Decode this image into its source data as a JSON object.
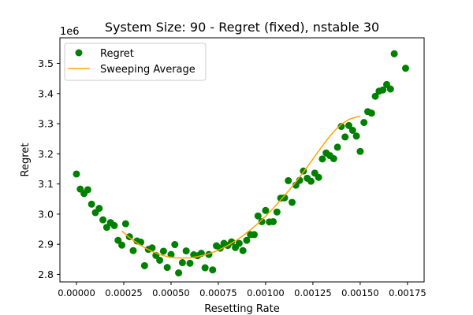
{
  "chart_data": {
    "type": "scatter",
    "title": "System Size: 90 - Regret (fixed), nstable 30",
    "xlabel": "Resetting Rate",
    "ylabel": "Regret",
    "y_offset_label": "1e6",
    "xlim": [
      -8.75e-05,
      0.001838
    ],
    "ylim": [
      2.775,
      3.585
    ],
    "x_ticks": [
      0,
      0.00025,
      0.0005,
      0.00075,
      0.001,
      0.00125,
      0.0015,
      0.00175
    ],
    "x_tick_labels": [
      "0.00000",
      "0.00025",
      "0.00050",
      "0.00075",
      "0.00100",
      "0.00125",
      "0.00150",
      "0.00175"
    ],
    "y_ticks": [
      2.8,
      2.9,
      3.0,
      3.1,
      3.2,
      3.3,
      3.4,
      3.5
    ],
    "y_tick_labels": [
      "2.8",
      "2.9",
      "3.0",
      "3.1",
      "3.2",
      "3.3",
      "3.4",
      "3.5"
    ],
    "grid": false,
    "legend_position": "top-left",
    "colors": {
      "scatter": "#008000",
      "line": "#ffa500"
    },
    "series": [
      {
        "name": "Regret",
        "kind": "scatter",
        "points": [
          [
            0.0,
            3.133
          ],
          [
            2e-05,
            3.083
          ],
          [
            4e-05,
            3.068
          ],
          [
            6e-05,
            3.081
          ],
          [
            8e-05,
            3.033
          ],
          [
            0.0001,
            3.005
          ],
          [
            0.00012,
            3.019
          ],
          [
            0.00014,
            2.981
          ],
          [
            0.00016,
            2.956
          ],
          [
            0.00018,
            2.972
          ],
          [
            0.0002,
            2.962
          ],
          [
            0.00022,
            2.913
          ],
          [
            0.00024,
            2.897
          ],
          [
            0.00026,
            2.968
          ],
          [
            0.00028,
            2.925
          ],
          [
            0.0003,
            2.879
          ],
          [
            0.00032,
            2.911
          ],
          [
            0.00034,
            2.907
          ],
          [
            0.00036,
            2.829
          ],
          [
            0.00038,
            2.883
          ],
          [
            0.0004,
            2.888
          ],
          [
            0.00042,
            2.863
          ],
          [
            0.00044,
            2.847
          ],
          [
            0.00046,
            2.877
          ],
          [
            0.00048,
            2.823
          ],
          [
            0.0005,
            2.866
          ],
          [
            0.00052,
            2.899
          ],
          [
            0.00054,
            2.805
          ],
          [
            0.00056,
            2.839
          ],
          [
            0.00058,
            2.878
          ],
          [
            0.0006,
            2.837
          ],
          [
            0.00062,
            2.865
          ],
          [
            0.00064,
            2.862
          ],
          [
            0.00066,
            2.87
          ],
          [
            0.00068,
            2.822
          ],
          [
            0.0007,
            2.866
          ],
          [
            0.00072,
            2.815
          ],
          [
            0.00074,
            2.895
          ],
          [
            0.00076,
            2.887
          ],
          [
            0.00078,
            2.903
          ],
          [
            0.0008,
            2.896
          ],
          [
            0.00082,
            2.908
          ],
          [
            0.00084,
            2.889
          ],
          [
            0.00086,
            2.903
          ],
          [
            0.00088,
            2.879
          ],
          [
            0.0009,
            2.913
          ],
          [
            0.00092,
            2.932
          ],
          [
            0.00094,
            2.932
          ],
          [
            0.00096,
            2.994
          ],
          [
            0.00098,
            2.975
          ],
          [
            0.001,
            3.012
          ],
          [
            0.00102,
            2.974
          ],
          [
            0.00104,
            2.975
          ],
          [
            0.00106,
            3.007
          ],
          [
            0.00108,
            3.053
          ],
          [
            0.0011,
            3.054
          ],
          [
            0.00112,
            3.111
          ],
          [
            0.00114,
            3.039
          ],
          [
            0.00116,
            3.096
          ],
          [
            0.00118,
            3.112
          ],
          [
            0.0012,
            3.143
          ],
          [
            0.00122,
            3.119
          ],
          [
            0.00124,
            3.109
          ],
          [
            0.00126,
            3.136
          ],
          [
            0.00128,
            3.122
          ],
          [
            0.0013,
            3.183
          ],
          [
            0.00132,
            3.203
          ],
          [
            0.00134,
            3.194
          ],
          [
            0.00136,
            3.184
          ],
          [
            0.00138,
            3.222
          ],
          [
            0.0014,
            3.291
          ],
          [
            0.00142,
            3.256
          ],
          [
            0.00144,
            3.294
          ],
          [
            0.00146,
            3.278
          ],
          [
            0.00148,
            3.259
          ],
          [
            0.0015,
            3.208
          ],
          [
            0.00152,
            3.304
          ],
          [
            0.00154,
            3.34
          ],
          [
            0.00156,
            3.335
          ],
          [
            0.00158,
            3.391
          ],
          [
            0.0016,
            3.408
          ],
          [
            0.00162,
            3.412
          ],
          [
            0.00164,
            3.43
          ],
          [
            0.00166,
            3.415
          ],
          [
            0.00168,
            3.532
          ],
          [
            0.00174,
            3.484
          ]
        ]
      },
      {
        "name": "Sweeping Average",
        "kind": "line",
        "points": [
          [
            0.00024,
            2.944
          ],
          [
            0.00028,
            2.922
          ],
          [
            0.00032,
            2.904
          ],
          [
            0.00036,
            2.889
          ],
          [
            0.0004,
            2.876
          ],
          [
            0.00044,
            2.866
          ],
          [
            0.00048,
            2.859
          ],
          [
            0.00052,
            2.855
          ],
          [
            0.00056,
            2.854
          ],
          [
            0.0006,
            2.855
          ],
          [
            0.00064,
            2.859
          ],
          [
            0.00068,
            2.865
          ],
          [
            0.00072,
            2.873
          ],
          [
            0.00076,
            2.883
          ],
          [
            0.0008,
            2.896
          ],
          [
            0.00084,
            2.911
          ],
          [
            0.00088,
            2.928
          ],
          [
            0.00092,
            2.948
          ],
          [
            0.00096,
            2.969
          ],
          [
            0.001,
            2.993
          ],
          [
            0.00104,
            3.019
          ],
          [
            0.00108,
            3.047
          ],
          [
            0.00112,
            3.076
          ],
          [
            0.00116,
            3.107
          ],
          [
            0.0012,
            3.14
          ],
          [
            0.00124,
            3.174
          ],
          [
            0.00128,
            3.209
          ],
          [
            0.00132,
            3.243
          ],
          [
            0.00136,
            3.274
          ],
          [
            0.0014,
            3.298
          ],
          [
            0.00144,
            3.314
          ],
          [
            0.00148,
            3.322
          ],
          [
            0.0015,
            3.325
          ]
        ]
      }
    ]
  }
}
